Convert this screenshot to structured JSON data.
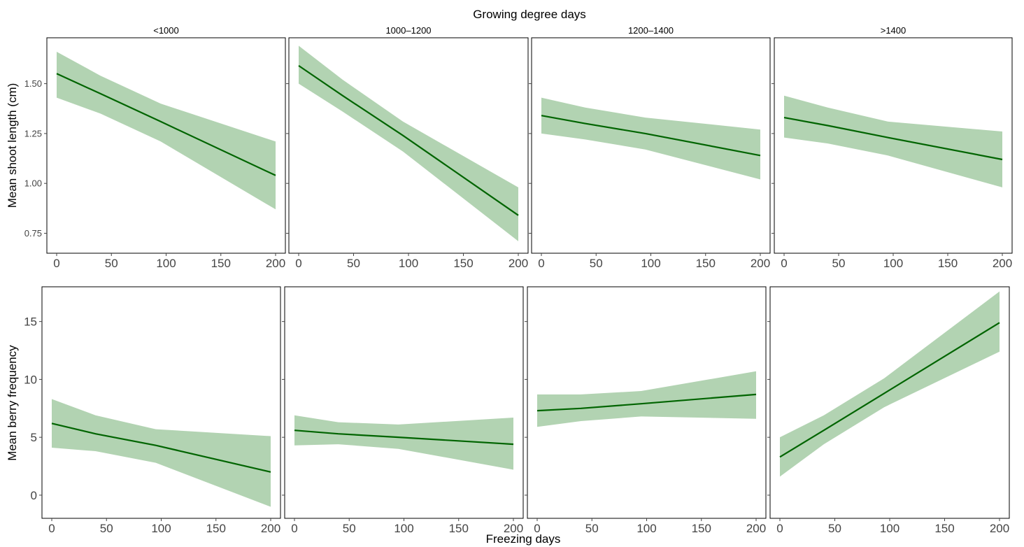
{
  "figure": {
    "title": "Growing degree days",
    "xlabel": "Freezing days",
    "colors": {
      "line": "#006400",
      "band": "#b2d3b2",
      "frame": "#000000",
      "text": "#000000",
      "tick": "#444444"
    }
  },
  "chart_data": [
    {
      "type": "line",
      "row": "top",
      "title": "<1000",
      "ylabel": "Mean shoot length (cm)",
      "xlim": [
        0,
        200
      ],
      "ylim": [
        0.65,
        1.73
      ],
      "xticks": [
        0,
        50,
        100,
        150,
        200
      ],
      "xtick_labels": [
        "0",
        "50",
        "100",
        "150",
        "200"
      ],
      "yticks": [
        0.75,
        1.0,
        1.25,
        1.5
      ],
      "ytick_labels": [
        "0.75",
        "1.00",
        "1.25",
        "1.50"
      ],
      "grid": false,
      "x": [
        0,
        40,
        95,
        200
      ],
      "fit": [
        1.55,
        1.45,
        1.31,
        1.04
      ],
      "lower": [
        1.43,
        1.35,
        1.21,
        0.87
      ],
      "upper": [
        1.66,
        1.54,
        1.4,
        1.21
      ]
    },
    {
      "type": "line",
      "row": "top",
      "title": "1000–1200",
      "xlim": [
        0,
        200
      ],
      "ylim": [
        0.65,
        1.73
      ],
      "xticks": [
        0,
        50,
        100,
        150,
        200
      ],
      "xtick_labels": [
        "0",
        "50",
        "100",
        "150",
        "200"
      ],
      "yticks": [
        0.75,
        1.0,
        1.25,
        1.5
      ],
      "grid": false,
      "x": [
        0,
        40,
        95,
        200
      ],
      "fit": [
        1.59,
        1.44,
        1.24,
        0.84
      ],
      "lower": [
        1.5,
        1.36,
        1.16,
        0.71
      ],
      "upper": [
        1.69,
        1.52,
        1.31,
        0.98
      ]
    },
    {
      "type": "line",
      "row": "top",
      "title": "1200–1400",
      "xlim": [
        0,
        200
      ],
      "ylim": [
        0.65,
        1.73
      ],
      "xticks": [
        0,
        50,
        100,
        150,
        200
      ],
      "xtick_labels": [
        "0",
        "50",
        "100",
        "150",
        "200"
      ],
      "yticks": [
        0.75,
        1.0,
        1.25,
        1.5
      ],
      "grid": false,
      "x": [
        0,
        40,
        95,
        200
      ],
      "fit": [
        1.34,
        1.3,
        1.25,
        1.14
      ],
      "lower": [
        1.25,
        1.22,
        1.17,
        1.02
      ],
      "upper": [
        1.43,
        1.38,
        1.33,
        1.27
      ]
    },
    {
      "type": "line",
      "row": "top",
      "title": ">1400",
      "xlim": [
        0,
        200
      ],
      "ylim": [
        0.65,
        1.73
      ],
      "xticks": [
        0,
        50,
        100,
        150,
        200
      ],
      "xtick_labels": [
        "0",
        "50",
        "100",
        "150",
        "200"
      ],
      "yticks": [
        0.75,
        1.0,
        1.25,
        1.5
      ],
      "grid": false,
      "x": [
        0,
        40,
        95,
        200
      ],
      "fit": [
        1.33,
        1.29,
        1.23,
        1.12
      ],
      "lower": [
        1.23,
        1.2,
        1.14,
        0.98
      ],
      "upper": [
        1.44,
        1.38,
        1.31,
        1.26
      ]
    },
    {
      "type": "line",
      "row": "bottom",
      "ylabel": "Mean berry frequency",
      "xlim": [
        0,
        200
      ],
      "ylim": [
        -2,
        18
      ],
      "xticks": [
        0,
        50,
        100,
        150,
        200
      ],
      "xtick_labels": [
        "0",
        "50",
        "100",
        "150",
        "200"
      ],
      "yticks": [
        0,
        5,
        10,
        15
      ],
      "ytick_labels": [
        "0",
        "5",
        "10",
        "15"
      ],
      "grid": false,
      "x": [
        0,
        40,
        95,
        200
      ],
      "fit": [
        6.2,
        5.3,
        4.3,
        2.0
      ],
      "lower": [
        4.1,
        3.8,
        2.8,
        -1.0
      ],
      "upper": [
        8.3,
        6.9,
        5.7,
        5.1
      ]
    },
    {
      "type": "line",
      "row": "bottom",
      "xlim": [
        0,
        200
      ],
      "ylim": [
        -2,
        18
      ],
      "xticks": [
        0,
        50,
        100,
        150,
        200
      ],
      "xtick_labels": [
        "0",
        "50",
        "100",
        "150",
        "200"
      ],
      "yticks": [
        0,
        5,
        10,
        15
      ],
      "grid": false,
      "x": [
        0,
        40,
        95,
        200
      ],
      "fit": [
        5.6,
        5.3,
        5.0,
        4.4
      ],
      "lower": [
        4.3,
        4.4,
        4.0,
        2.2
      ],
      "upper": [
        6.9,
        6.3,
        6.1,
        6.7
      ]
    },
    {
      "type": "line",
      "row": "bottom",
      "xlim": [
        0,
        200
      ],
      "ylim": [
        -2,
        18
      ],
      "xticks": [
        0,
        50,
        100,
        150,
        200
      ],
      "xtick_labels": [
        "0",
        "50",
        "100",
        "150",
        "200"
      ],
      "yticks": [
        0,
        5,
        10,
        15
      ],
      "grid": false,
      "x": [
        0,
        40,
        95,
        200
      ],
      "fit": [
        7.3,
        7.5,
        7.9,
        8.7
      ],
      "lower": [
        5.9,
        6.4,
        6.8,
        6.6
      ],
      "upper": [
        8.7,
        8.7,
        9.0,
        10.7
      ]
    },
    {
      "type": "line",
      "row": "bottom",
      "xlim": [
        0,
        200
      ],
      "ylim": [
        -2,
        18
      ],
      "xticks": [
        0,
        50,
        100,
        150,
        200
      ],
      "xtick_labels": [
        "0",
        "50",
        "100",
        "150",
        "200"
      ],
      "yticks": [
        0,
        5,
        10,
        15
      ],
      "grid": false,
      "x": [
        0,
        40,
        95,
        200
      ],
      "fit": [
        3.3,
        5.6,
        8.8,
        14.9
      ],
      "lower": [
        1.6,
        4.4,
        7.6,
        12.4
      ],
      "upper": [
        5.0,
        6.9,
        10.1,
        17.6
      ]
    }
  ]
}
